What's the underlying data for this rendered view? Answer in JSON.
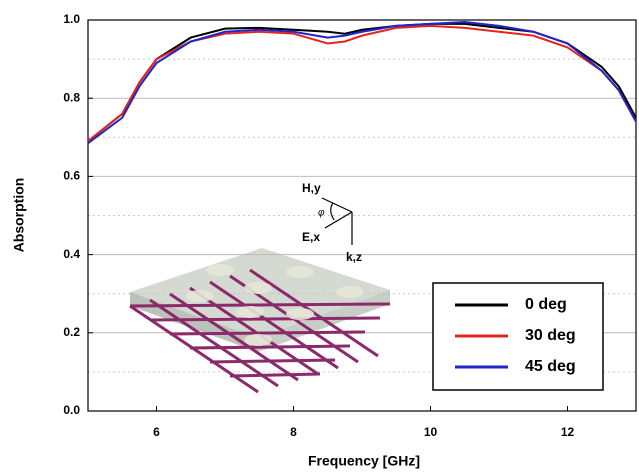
{
  "chart_data": {
    "type": "line",
    "x_label": "Frequency [GHz]",
    "y_label": "Absorption",
    "x": [
      5,
      5.5,
      5.75,
      6,
      6.5,
      7,
      7.5,
      8,
      8.5,
      8.75,
      9,
      9.5,
      10,
      10.5,
      11,
      11.5,
      12,
      12.5,
      12.75,
      13
    ],
    "series": [
      {
        "name": "0 deg",
        "color": "#000000",
        "values": [
          0.69,
          0.76,
          0.84,
          0.9,
          0.955,
          0.978,
          0.98,
          0.975,
          0.97,
          0.965,
          0.975,
          0.985,
          0.99,
          0.99,
          0.98,
          0.97,
          0.94,
          0.88,
          0.83,
          0.75
        ]
      },
      {
        "name": "30 deg",
        "color": "#e8231e",
        "values": [
          0.69,
          0.76,
          0.84,
          0.9,
          0.945,
          0.965,
          0.97,
          0.965,
          0.94,
          0.945,
          0.96,
          0.98,
          0.985,
          0.98,
          0.97,
          0.96,
          0.93,
          0.87,
          0.82,
          0.74
        ]
      },
      {
        "name": "45 deg",
        "color": "#1f25c9",
        "values": [
          0.685,
          0.75,
          0.83,
          0.89,
          0.945,
          0.97,
          0.975,
          0.97,
          0.955,
          0.96,
          0.97,
          0.985,
          0.99,
          0.995,
          0.985,
          0.97,
          0.94,
          0.87,
          0.82,
          0.74
        ]
      }
    ],
    "xlim": [
      5,
      13
    ],
    "ylim": [
      0,
      1
    ],
    "xticks": [
      6,
      8,
      10,
      12
    ],
    "yticks": [
      {
        "value": 0,
        "label": "0.0"
      },
      0.2,
      0.4,
      0.6,
      0.8,
      {
        "value": 1,
        "label": "1.0"
      }
    ],
    "grid": true,
    "legend_position": "lower right",
    "annotations": [
      "H,y",
      "E,x",
      "k,z",
      "φ"
    ]
  }
}
